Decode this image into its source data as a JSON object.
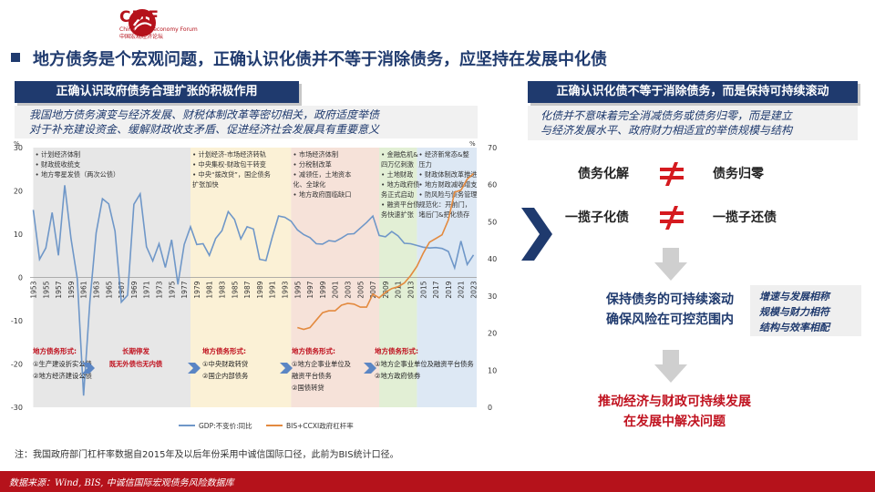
{
  "logo": {
    "name": "CMF",
    "subtitle": "China Macroeconomy Forum",
    "cn_name": "中国宏观经济论坛"
  },
  "title": "地方债务是个宏观问题，正确认识化债并不等于消除债务，应坚持在发展中化债",
  "left_panel": {
    "header": "正确认识政府债务合理扩张的积极作用",
    "description": [
      "我国地方债务演变与经济发展、财税体制改革等密切相关，政府适度举债",
      "对于补充建设资金、缓解财政收支矛盾、促进经济社会发展具有重要意义"
    ]
  },
  "right_panel": {
    "header": "正确认识化债不等于消除债务，而是保持可持续滚动",
    "description": [
      "化债并不意味着完全消减债务或债务归零，而是建立",
      "与经济发展水平、政府财力相适宜的举债规模与结构"
    ],
    "pairs": [
      {
        "left": "债务化解",
        "right": "债务归零"
      },
      {
        "left": "一揽子化债",
        "right": "一揽子还债"
      }
    ],
    "neq_symbol": "≠",
    "step1": [
      "保持债务的可持续滚动",
      "确保风险在可控范围内"
    ],
    "side_note": [
      "增速与发展相称",
      "规模与财力相符",
      "结构与效率相配"
    ],
    "step2": [
      "推动经济与财政可持续发展",
      "在发展中解决问题"
    ]
  },
  "chart_data": {
    "type": "line",
    "title": "",
    "left_axis": {
      "unit": "%",
      "ylim": [
        -30,
        30
      ],
      "ticks": [
        "30",
        "20",
        "10",
        "0",
        "-10",
        "-20",
        "-30"
      ]
    },
    "right_axis": {
      "unit": "%",
      "ylim": [
        0,
        70
      ],
      "ticks": [
        "70",
        "60",
        "50",
        "40",
        "30",
        "20",
        "10",
        "0"
      ]
    },
    "x_ticks": [
      "1953",
      "1955",
      "1957",
      "1959",
      "1961",
      "1963",
      "1965",
      "1967",
      "1969",
      "1971",
      "1973",
      "1975",
      "1977",
      "1979",
      "1981",
      "1983",
      "1985",
      "1987",
      "1989",
      "1991",
      "1993",
      "1995",
      "1997",
      "1999",
      "2001",
      "2003",
      "2005",
      "2007",
      "2009",
      "2011",
      "2013",
      "2015",
      "2017",
      "2019",
      "2021",
      "2023"
    ],
    "legend_position": "bottom",
    "series": [
      {
        "name": "GDP:不变价:同比",
        "axis": "left",
        "color": "#6f97c8",
        "x": [
          1953,
          1954,
          1955,
          1956,
          1957,
          1958,
          1959,
          1960,
          1961,
          1962,
          1963,
          1964,
          1965,
          1966,
          1967,
          1968,
          1969,
          1970,
          1971,
          1972,
          1973,
          1974,
          1975,
          1976,
          1977,
          1978,
          1979,
          1980,
          1981,
          1982,
          1983,
          1984,
          1985,
          1986,
          1987,
          1988,
          1989,
          1990,
          1991,
          1992,
          1993,
          1994,
          1995,
          1996,
          1997,
          1998,
          1999,
          2000,
          2001,
          2002,
          2003,
          2004,
          2005,
          2006,
          2007,
          2008,
          2009,
          2010,
          2011,
          2012,
          2013,
          2014,
          2015,
          2016,
          2017,
          2018,
          2019,
          2020,
          2021,
          2022,
          2023
        ],
        "y": [
          15.6,
          4.2,
          6.8,
          15,
          5.1,
          21.3,
          9,
          -0.3,
          -27.3,
          -5.6,
          10.3,
          18.2,
          17,
          10.7,
          -5.7,
          -4.1,
          16.9,
          19.3,
          7.1,
          3.8,
          7.8,
          2.3,
          8.7,
          -1.6,
          7.6,
          11.7,
          7.6,
          7.8,
          5.1,
          9,
          10.8,
          15.2,
          13.4,
          8.9,
          11.7,
          11.2,
          4.2,
          3.9,
          9.3,
          14.2,
          13.9,
          13,
          11,
          9.9,
          9.2,
          7.8,
          7.7,
          8.5,
          8.3,
          9.1,
          10,
          10.1,
          11.4,
          12.7,
          14.2,
          9.7,
          9.4,
          10.6,
          9.6,
          7.9,
          7.8,
          7.4,
          7,
          6.8,
          6.9,
          6.7,
          6,
          2.2,
          8.4,
          3,
          5.2
        ]
      },
      {
        "name": "BIS+CCXI政府杠杆率",
        "axis": "right",
        "color": "#e38a3f",
        "x": [
          1995,
          1996,
          1997,
          1998,
          1999,
          2000,
          2001,
          2002,
          2003,
          2004,
          2005,
          2006,
          2007,
          2008,
          2009,
          2010,
          2011,
          2012,
          2013,
          2014,
          2015,
          2016,
          2017,
          2018,
          2019,
          2020,
          2021,
          2022,
          2023
        ],
        "y": [
          21.5,
          21,
          21.5,
          23.5,
          25.5,
          26,
          26,
          27.5,
          28,
          27.8,
          27,
          27,
          30.5,
          29.5,
          31,
          32,
          32.5,
          33.5,
          35.5,
          38,
          41.5,
          44.5,
          45.5,
          46.5,
          50.5,
          58,
          58.5,
          61.5,
          63
        ]
      }
    ],
    "periods": [
      {
        "from": 1953,
        "to": 1978,
        "color": "#e7e7e7",
        "notes": [
          "• 计划经济体制",
          "• 财政统收统支",
          "• 地方零星发债（两次公债）"
        ]
      },
      {
        "from": 1978,
        "to": 1994,
        "color": "#fbf1d6",
        "notes": [
          "• 计划经济-市场经济转轨",
          "• 中央集权-财政包干转变",
          "• 中央“拨改贷”，国企债务",
          "  扩张加快"
        ]
      },
      {
        "from": 1994,
        "to": 2008,
        "color": "#f6e2d9",
        "notes": [
          "• 市场经济体制",
          "• 分税制改革",
          "• 减领任，土地资本",
          "  化、全球化",
          "• 地方政府面临缺口"
        ]
      },
      {
        "from": 2008,
        "to": 2014,
        "color": "#e2efd5",
        "notes": [
          "• 金融危机&",
          "  四万亿刺激",
          "• 土地财政",
          "• 地方政府债",
          "  务正式启动",
          "• 融资平台债",
          "  务快速扩张"
        ]
      },
      {
        "from": 2014,
        "to": 2023.5,
        "color": "#dde8f4",
        "notes": [
          "• 经济新常态&整",
          "  压力",
          "• 财政体制改革推进",
          "• 地方财政减收增支",
          "• 防风险与债务管理",
          "  规范化：开前门，",
          "  堵后门&把化债存"
        ]
      }
    ],
    "stages": [
      {
        "title": "地方债务形式:",
        "items": [
          "①生产建设折实公债",
          "②地方经济建设公债"
        ],
        "color": "#c0121f"
      },
      {
        "title": "长期停发",
        "items": [
          "既无外债也无内债"
        ],
        "color": "#c0121f"
      },
      {
        "title": "地方债务形式:",
        "items": [
          "①中央财政转贷",
          "②国企内部债务"
        ],
        "color": "#c0121f"
      },
      {
        "title": "地方债务形式:",
        "items": [
          "①地方企事业单位及",
          "融资平台债务",
          "②国债转贷"
        ],
        "color": "#c0121f"
      },
      {
        "title": "地方债务形式:",
        "items": [
          "①地方企事业单位及融资平台债务",
          "②地方政府债券"
        ],
        "color": "#c0121f"
      }
    ]
  },
  "note": "注：我国政府部门杠杆率数据自2015年及以后年份采用中诚信国际口径，此前为BIS统计口径。",
  "footer": "数据来源：Wind, BIS, 中诚信国际宏观债务风险数据库"
}
